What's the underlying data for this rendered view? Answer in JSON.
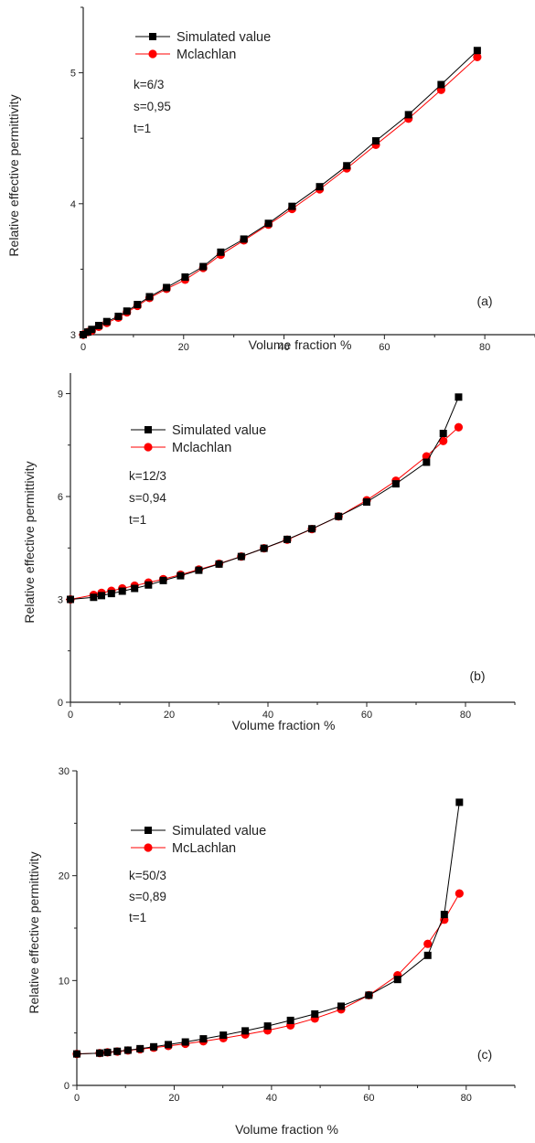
{
  "colors": {
    "simulated": "#000000",
    "mclachlan": "#ff0000",
    "axis": "#222222"
  },
  "chart_data": [
    {
      "type": "line",
      "panel_label": "(a)",
      "xlabel": "Volume fraction %",
      "ylabel": "Relative effective permittivity",
      "xlim": [
        0,
        90
      ],
      "ylim": [
        3,
        5.5
      ],
      "xticks": [
        "0",
        "20",
        "40",
        "60",
        "80"
      ],
      "yticks": [
        "3",
        "4",
        "5"
      ],
      "legend_location": "top-left",
      "legend": [
        "Simulated value",
        "Mclachlan"
      ],
      "params": [
        "k=6/3",
        "s=0,95",
        "t=1"
      ],
      "series": [
        {
          "name": "Simulated value",
          "marker": "square",
          "x": [
            0,
            0.9,
            1.7,
            3.1,
            4.7,
            7,
            8.7,
            10.8,
            13.2,
            16.6,
            20.3,
            23.9,
            27.4,
            32,
            36.9,
            41.6,
            47.1,
            52.5,
            58.3,
            64.8,
            71.3,
            78.5
          ],
          "y": [
            3.0,
            3.02,
            3.04,
            3.07,
            3.1,
            3.14,
            3.18,
            3.23,
            3.29,
            3.36,
            3.44,
            3.52,
            3.63,
            3.73,
            3.85,
            3.98,
            4.13,
            4.29,
            4.48,
            4.68,
            4.91,
            5.17
          ]
        },
        {
          "name": "Mclachlan",
          "marker": "circle",
          "x": [
            0,
            0.9,
            1.7,
            3.1,
            4.7,
            7,
            8.7,
            10.8,
            13.2,
            16.6,
            20.3,
            23.9,
            27.4,
            32,
            36.9,
            41.6,
            47.1,
            52.5,
            58.3,
            64.8,
            71.3,
            78.5
          ],
          "y": [
            3.0,
            3.02,
            3.03,
            3.06,
            3.09,
            3.13,
            3.17,
            3.22,
            3.28,
            3.35,
            3.42,
            3.51,
            3.61,
            3.72,
            3.84,
            3.96,
            4.11,
            4.27,
            4.45,
            4.65,
            4.87,
            5.12
          ]
        }
      ]
    },
    {
      "type": "line",
      "panel_label": "(b)",
      "xlabel": "Volume fraction %",
      "ylabel": "Relative effective permittivity",
      "xlim": [
        0,
        90
      ],
      "ylim": [
        0,
        9.6
      ],
      "xticks": [
        "0",
        "20",
        "40",
        "60",
        "80"
      ],
      "yticks": [
        "0",
        "3",
        "6",
        "9"
      ],
      "legend_location": "top-left",
      "legend": [
        "Simulated value",
        "Mclachlan"
      ],
      "params": [
        "k=12/3",
        "s=0,94",
        "t=1"
      ],
      "series": [
        {
          "name": "Simulated value",
          "marker": "square",
          "x": [
            0,
            4.7,
            6.3,
            8.3,
            10.5,
            13,
            15.8,
            18.8,
            22.3,
            26,
            30.1,
            34.6,
            39.2,
            43.9,
            48.9,
            54.3,
            60,
            65.9,
            72.1,
            75.5,
            78.6
          ],
          "y": [
            3.0,
            3.06,
            3.11,
            3.17,
            3.24,
            3.32,
            3.42,
            3.55,
            3.69,
            3.85,
            4.03,
            4.25,
            4.49,
            4.75,
            5.06,
            5.42,
            5.84,
            6.37,
            7.0,
            7.84,
            8.9
          ]
        },
        {
          "name": "Mclachlan",
          "marker": "circle",
          "x": [
            0,
            4.7,
            6.3,
            8.3,
            10.5,
            13,
            15.8,
            18.8,
            22.3,
            26,
            30.1,
            34.6,
            39.2,
            43.9,
            48.9,
            54.3,
            60,
            65.9,
            72.1,
            75.5,
            78.6
          ],
          "y": [
            3.0,
            3.13,
            3.19,
            3.25,
            3.32,
            3.4,
            3.49,
            3.59,
            3.72,
            3.87,
            4.04,
            4.25,
            4.49,
            4.74,
            5.05,
            5.42,
            5.89,
            6.46,
            7.17,
            7.62,
            8.02
          ]
        }
      ]
    },
    {
      "type": "line",
      "panel_label": "(c)",
      "xlabel": "Volume fraction %",
      "ylabel": "Relative effective permittivity",
      "xlim": [
        0,
        90
      ],
      "ylim": [
        0,
        30
      ],
      "xticks": [
        "0",
        "20",
        "40",
        "60",
        "80"
      ],
      "yticks": [
        "0",
        "10",
        "20",
        "30"
      ],
      "legend_location": "top-left",
      "legend": [
        "Simulated value",
        "McLachlan"
      ],
      "params": [
        "k=50/3",
        "s=0,89",
        "t=1"
      ],
      "series": [
        {
          "name": "Simulated value",
          "marker": "square",
          "x": [
            0,
            4.7,
            6.3,
            8.3,
            10.5,
            13,
            15.8,
            18.8,
            22.3,
            26,
            30.1,
            34.6,
            39.2,
            43.9,
            48.9,
            54.3,
            60,
            65.9,
            72.1,
            75.5,
            78.6
          ],
          "y": [
            3.0,
            3.08,
            3.15,
            3.25,
            3.36,
            3.5,
            3.68,
            3.89,
            4.14,
            4.44,
            4.79,
            5.2,
            5.66,
            6.2,
            6.81,
            7.55,
            8.6,
            10.1,
            12.4,
            16.3,
            27.0
          ]
        },
        {
          "name": "McLachlan",
          "marker": "circle",
          "x": [
            0,
            4.7,
            6.3,
            8.3,
            10.5,
            13,
            15.8,
            18.8,
            22.3,
            26,
            30.1,
            34.6,
            39.2,
            43.9,
            48.9,
            54.3,
            60,
            65.9,
            72.1,
            75.5,
            78.6
          ],
          "y": [
            3.0,
            3.08,
            3.15,
            3.23,
            3.33,
            3.45,
            3.59,
            3.76,
            3.97,
            4.21,
            4.5,
            4.85,
            5.24,
            5.72,
            6.38,
            7.25,
            8.6,
            10.5,
            13.5,
            15.8,
            18.3
          ]
        }
      ]
    }
  ]
}
